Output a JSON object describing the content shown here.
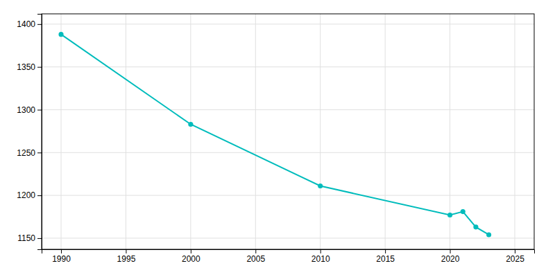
{
  "chart_data": {
    "type": "line",
    "x": [
      1990,
      2000,
      2010,
      2020,
      2021,
      2022,
      2023
    ],
    "values": [
      1388,
      1283,
      1211,
      1177,
      1181,
      1163,
      1154
    ],
    "color": "#00BCBC",
    "marker": "circle",
    "xlim": [
      1988.5,
      2026.5
    ],
    "ylim": [
      1137,
      1412
    ],
    "xticks": [
      1990,
      1995,
      2000,
      2005,
      2010,
      2015,
      2020,
      2025
    ],
    "yticks": [
      1150,
      1200,
      1250,
      1300,
      1350,
      1400
    ],
    "grid": true
  }
}
